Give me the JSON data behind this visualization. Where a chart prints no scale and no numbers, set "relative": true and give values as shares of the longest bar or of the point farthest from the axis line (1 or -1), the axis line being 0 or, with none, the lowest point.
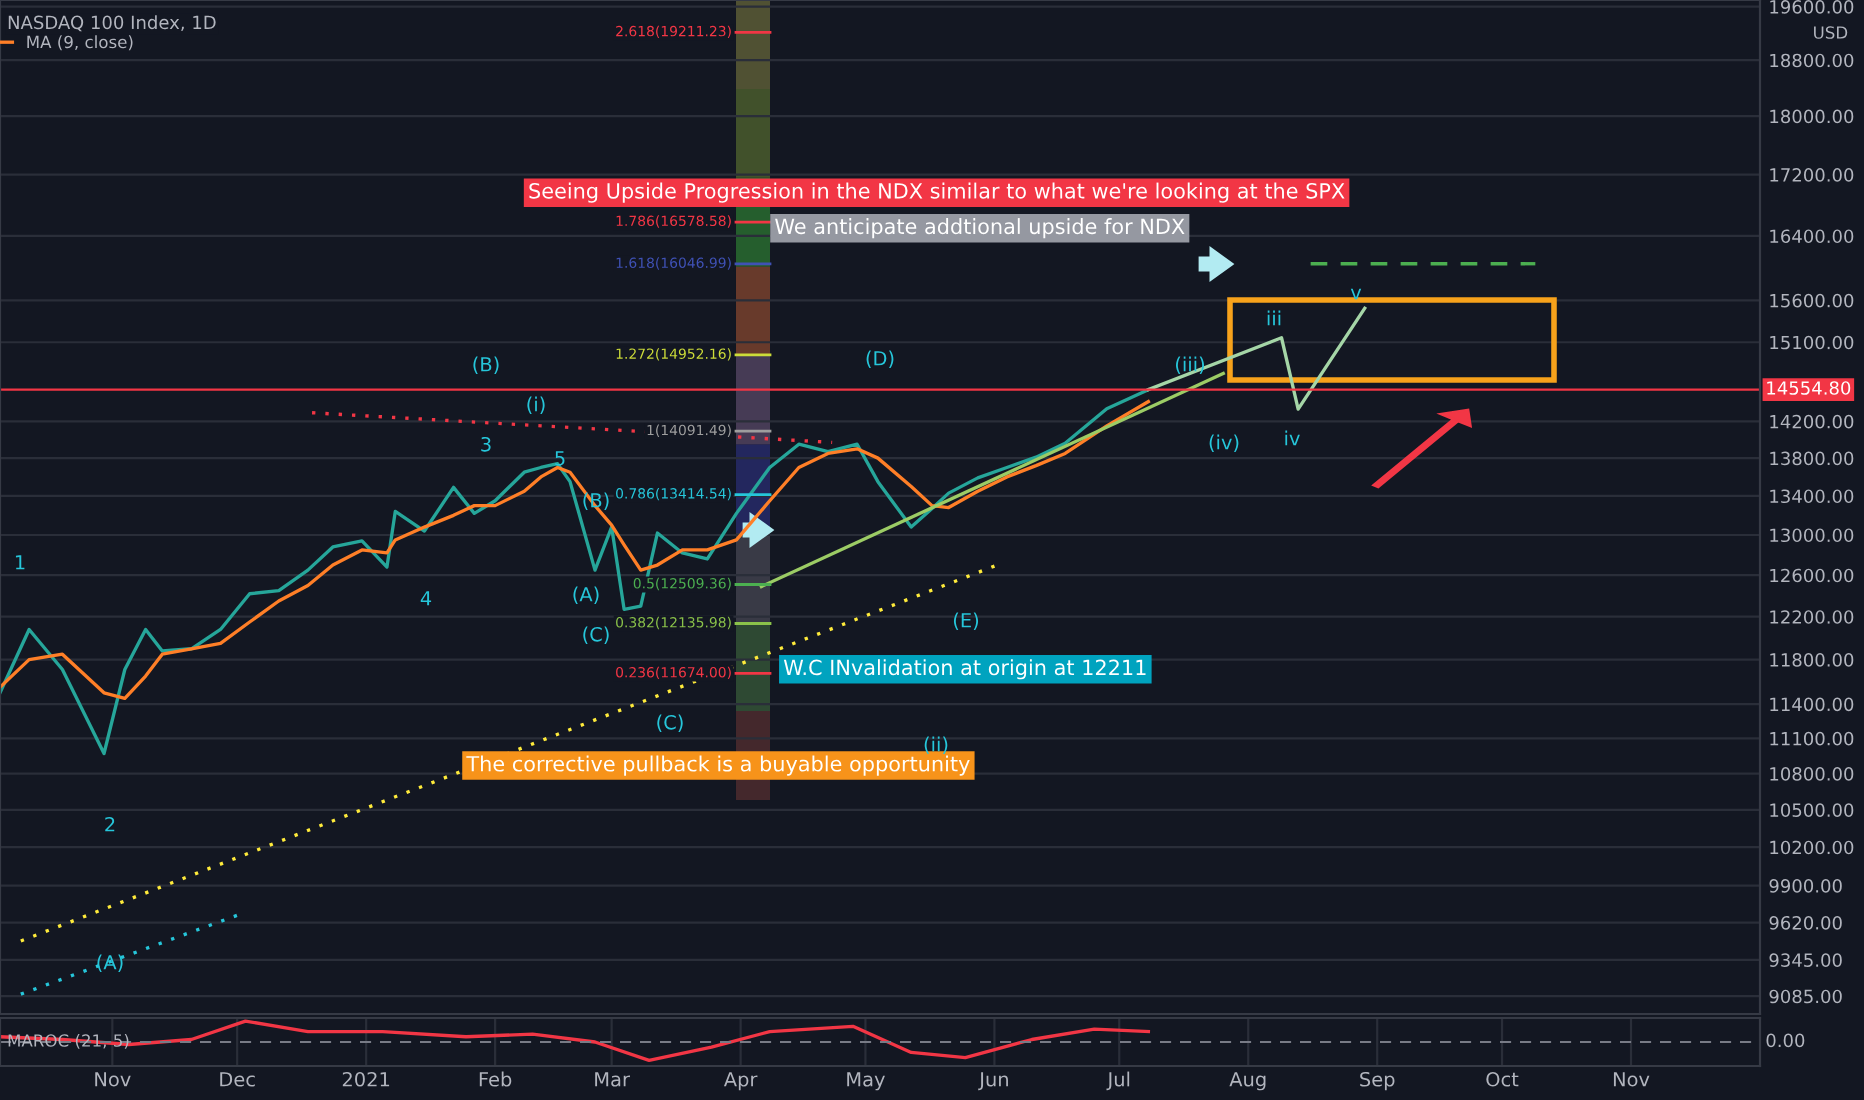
{
  "chart_data": [
    {
      "type": "line",
      "title": "NASDAQ 100 Index, 1D",
      "series": [
        {
          "x": [
            "2020-10-05",
            "2020-10-12",
            "2020-10-20",
            "2020-10-30",
            "2020-11-04",
            "2020-11-09",
            "2020-11-13",
            "2020-11-20",
            "2020-11-27",
            "2020-12-04",
            "2020-12-11",
            "2020-12-18",
            "2020-12-24",
            "2020-12-31",
            "2021-01-06",
            "2021-01-08",
            "2021-01-15",
            "2021-01-22",
            "2021-01-27",
            "2021-02-01",
            "2021-02-08",
            "2021-02-12",
            "2021-02-16",
            "2021-02-19",
            "2021-02-25",
            "2021-03-01",
            "2021-03-04",
            "2021-03-08",
            "2021-03-12",
            "2021-03-18",
            "2021-03-24",
            "2021-03-31",
            "2021-04-08",
            "2021-04-15",
            "2021-04-22",
            "2021-04-29",
            "2021-05-04",
            "2021-05-12",
            "2021-05-17",
            "2021-05-21",
            "2021-05-28",
            "2021-06-04",
            "2021-06-11",
            "2021-06-18",
            "2021-06-28",
            "2021-07-08"
          ],
          "color": "#26a69a",
          "values": [
            11500,
            12080,
            11710,
            10970,
            11710,
            12080,
            11880,
            11900,
            12080,
            12420,
            12450,
            12650,
            12880,
            12940,
            12680,
            13240,
            13040,
            13490,
            13220,
            13350,
            13650,
            13700,
            13740,
            13550,
            12650,
            13080,
            12270,
            12300,
            13020,
            12820,
            12760,
            13220,
            13700,
            13950,
            13870,
            13950,
            13550,
            13080,
            13270,
            13430,
            13590,
            13700,
            13810,
            13960,
            14340,
            14554.8
          ]
        },
        {
          "name": "MA (9, close)",
          "x": [
            "2020-10-05",
            "2020-10-12",
            "2020-10-20",
            "2020-10-30",
            "2020-11-04",
            "2020-11-09",
            "2020-11-13",
            "2020-11-20",
            "2020-11-27",
            "2020-12-04",
            "2020-12-11",
            "2020-12-18",
            "2020-12-24",
            "2020-12-31",
            "2021-01-06",
            "2021-01-08",
            "2021-01-15",
            "2021-01-22",
            "2021-01-27",
            "2021-02-01",
            "2021-02-08",
            "2021-02-12",
            "2021-02-16",
            "2021-02-19",
            "2021-02-25",
            "2021-03-01",
            "2021-03-04",
            "2021-03-08",
            "2021-03-12",
            "2021-03-18",
            "2021-03-24",
            "2021-03-31",
            "2021-04-08",
            "2021-04-15",
            "2021-04-22",
            "2021-04-29",
            "2021-05-04",
            "2021-05-12",
            "2021-05-17",
            "2021-05-21",
            "2021-05-28",
            "2021-06-04",
            "2021-06-11",
            "2021-06-18",
            "2021-06-28",
            "2021-07-08"
          ],
          "color": "#ff7f27",
          "values": [
            11550,
            11800,
            11850,
            11500,
            11450,
            11650,
            11850,
            11900,
            11950,
            12150,
            12350,
            12500,
            12700,
            12850,
            12820,
            12950,
            13080,
            13200,
            13300,
            13300,
            13450,
            13600,
            13700,
            13650,
            13300,
            13100,
            12900,
            12650,
            12700,
            12850,
            12850,
            12950,
            13350,
            13700,
            13850,
            13900,
            13800,
            13500,
            13300,
            13280,
            13450,
            13600,
            13720,
            13850,
            14150,
            14420
          ]
        },
        {
          "x": [
            "2020-12-19",
            "2021-04-23"
          ],
          "values": [
            14295,
            13970
          ],
          "color": "#f23645",
          "line_style": "dotted"
        },
        {
          "x": [
            "2020-10-10",
            "2021-06-02"
          ],
          "values": [
            9483,
            12705
          ],
          "color": "#ffeb3b",
          "line_style": "dotted"
        },
        {
          "x": [
            "2020-10-10",
            "2020-12-01"
          ],
          "values": [
            9099,
            9674
          ],
          "color": "#26c6da",
          "line_style": "dotted"
        },
        {
          "x": [
            "2021-04-06",
            "2021-07-26"
          ],
          "values": [
            12490,
            14739
          ],
          "color": "#9ccc65"
        },
        {
          "x": [
            "2021-07-08",
            "2021-08-09",
            "2021-08-13",
            "2021-08-29"
          ],
          "values": [
            14554.8,
            15153,
            14336,
            15504
          ],
          "color": "#a5d6a7"
        },
        {
          "x": [
            "2021-08-16",
            "2021-10-09"
          ],
          "values": [
            16050,
            16050
          ],
          "color": "#4caf50",
          "line_style": "dashed"
        }
      ],
      "xlim": [
        "2020-10-05",
        "2021-12-02"
      ],
      "ylim": [
        8960,
        19700
      ],
      "log": true,
      "yticks": [
        {
          "value": 9085,
          "label": "9085.00"
        },
        {
          "value": 9345,
          "label": "9345.00"
        },
        {
          "value": 9620,
          "label": "9620.00"
        },
        {
          "value": 9900,
          "label": "9900.00"
        },
        {
          "value": 10200,
          "label": "10200.00"
        },
        {
          "value": 10500,
          "label": "10500.00"
        },
        {
          "value": 10800,
          "label": "10800.00"
        },
        {
          "value": 11100,
          "label": "11100.00"
        },
        {
          "value": 11400,
          "label": "11400.00"
        },
        {
          "value": 11800,
          "label": "11800.00"
        },
        {
          "value": 12200,
          "label": "12200.00"
        },
        {
          "value": 12600,
          "label": "12600.00"
        },
        {
          "value": 13000,
          "label": "13000.00"
        },
        {
          "value": 13400,
          "label": "13400.00"
        },
        {
          "value": 13800,
          "label": "13800.00"
        },
        {
          "value": 14200,
          "label": "14200.00"
        },
        {
          "value": 15100,
          "label": "15100.00"
        },
        {
          "value": 15600,
          "label": "15600.00"
        },
        {
          "value": 16400,
          "label": "16400.00"
        },
        {
          "value": 17200,
          "label": "17200.00"
        },
        {
          "value": 18000,
          "label": "18000.00"
        },
        {
          "value": 18800,
          "label": "18800.00"
        },
        {
          "value": 19600,
          "label": "19600.00"
        }
      ],
      "tick_labels": "y",
      "grid": true,
      "legend": "top left",
      "ref_lines": [
        {
          "axis": "y",
          "value": 14554.8,
          "label": "14554.80",
          "color": "#f23645"
        },
        {
          "axis": "y",
          "value": 19211.23,
          "label": "2.618(19211.23)",
          "color": "#f23645"
        },
        {
          "axis": "y",
          "value": 16578.58,
          "label": "1.786(16578.58)",
          "color": "#f23645"
        },
        {
          "axis": "y",
          "value": 16046.99,
          "label": "1.618(16046.99)",
          "color": "#3f51b5"
        },
        {
          "axis": "y",
          "value": 14952.16,
          "label": "1.272(14952.16)",
          "color": "#cddc39"
        },
        {
          "axis": "y",
          "value": 14091.49,
          "label": "1(14091.49)",
          "color": "#9e9e9e"
        },
        {
          "axis": "y",
          "value": 13414.54,
          "label": "0.786(13414.54)",
          "color": "#26c6da"
        },
        {
          "axis": "y",
          "value": 12509.36,
          "label": "0.5(12509.36)",
          "color": "#4caf50"
        },
        {
          "axis": "y",
          "value": 12135.98,
          "label": "0.382(12135.98)",
          "color": "#8bc34a"
        },
        {
          "axis": "y",
          "value": 11674.0,
          "label": "0.236(11674.00)",
          "color": "#f23645"
        }
      ],
      "annotations": [
        "Seeing Upside Progression in the NDX similar to what we're looking at the SPX",
        "We anticipate addtional upside for NDX",
        "W.C INvalidation at origin at 12211",
        "The corrective pullback is a buyable opportunity",
        "USD",
        "(A)",
        "(B)",
        "(i)",
        "(A)",
        "(B)",
        "(C)",
        "(C)",
        "(D)",
        "(E)",
        "(ii)",
        "(iii)",
        "(iv)",
        "iii",
        "iv",
        "v",
        "1",
        "2",
        "3",
        "4",
        "5"
      ]
    },
    {
      "type": "line",
      "title": "MAROC (21, 5)",
      "relative": true,
      "series": [
        {
          "x": [
            "2020-10-05",
            "2020-10-20",
            "2020-11-05",
            "2020-11-20",
            "2020-12-03",
            "2020-12-18",
            "2021-01-05",
            "2021-01-25",
            "2021-02-10",
            "2021-02-25",
            "2021-03-10",
            "2021-03-25",
            "2021-04-08",
            "2021-04-28",
            "2021-05-12",
            "2021-05-25",
            "2021-06-10",
            "2021-06-25",
            "2021-07-08"
          ],
          "color": "#f23645",
          "values": [
            0.25,
            0.12,
            -0.12,
            0.12,
            1,
            0.5,
            0.5,
            0.25,
            0.38,
            0,
            -0.88,
            -0.25,
            0.5,
            0.75,
            -0.5,
            -0.75,
            0.12,
            0.62,
            0.5
          ]
        }
      ],
      "xlim": [
        "2020-10-05",
        "2021-12-02"
      ],
      "xticks": [
        {
          "value": "2020-11-01",
          "label": "Nov"
        },
        {
          "value": "2020-12-01",
          "label": "Dec"
        },
        {
          "value": "2021-01-01",
          "label": "2021"
        },
        {
          "value": "2021-02-01",
          "label": "Feb"
        },
        {
          "value": "2021-03-01",
          "label": "Mar"
        },
        {
          "value": "2021-04-01",
          "label": "Apr"
        },
        {
          "value": "2021-05-01",
          "label": "May"
        },
        {
          "value": "2021-06-01",
          "label": "Jun"
        },
        {
          "value": "2021-07-01",
          "label": "Jul"
        },
        {
          "value": "2021-08-01",
          "label": "Aug"
        },
        {
          "value": "2021-09-01",
          "label": "Sep"
        },
        {
          "value": "2021-10-01",
          "label": "Oct"
        },
        {
          "value": "2021-11-01",
          "label": "Nov"
        }
      ],
      "tick_labels": "x",
      "grid": "x",
      "ref_lines": [
        {
          "axis": "y",
          "value": 0,
          "label": "0.00",
          "color": "#787b86",
          "line_style": "dashed"
        }
      ]
    }
  ]
}
